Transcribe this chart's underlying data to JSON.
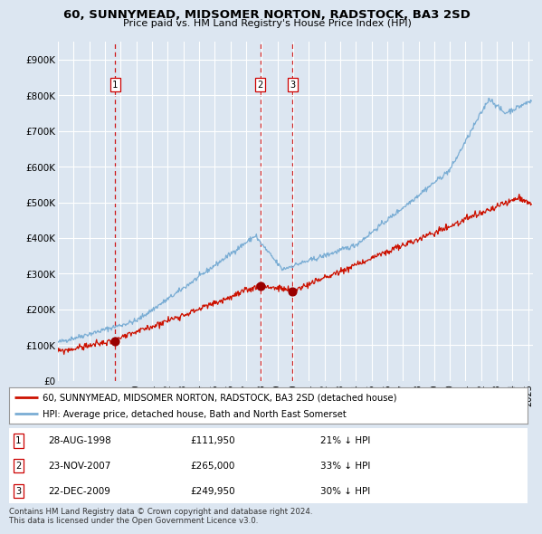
{
  "title": "60, SUNNYMEAD, MIDSOMER NORTON, RADSTOCK, BA3 2SD",
  "subtitle": "Price paid vs. HM Land Registry's House Price Index (HPI)",
  "background_color": "#dce6f1",
  "plot_bg_color": "#dce6f1",
  "red_line_label": "60, SUNNYMEAD, MIDSOMER NORTON, RADSTOCK, BA3 2SD (detached house)",
  "blue_line_label": "HPI: Average price, detached house, Bath and North East Somerset",
  "footer": "Contains HM Land Registry data © Crown copyright and database right 2024.\nThis data is licensed under the Open Government Licence v3.0.",
  "transactions": [
    {
      "num": 1,
      "date": "28-AUG-1998",
      "price": 111950,
      "hpi_note": "21% ↓ HPI",
      "x_year": 1998.65
    },
    {
      "num": 2,
      "date": "23-NOV-2007",
      "price": 265000,
      "hpi_note": "33% ↓ HPI",
      "x_year": 2007.9
    },
    {
      "num": 3,
      "date": "22-DEC-2009",
      "price": 249950,
      "hpi_note": "30% ↓ HPI",
      "x_year": 2009.97
    }
  ],
  "vline_color": "#cc0000",
  "dot_color": "#990000",
  "ylim": [
    0,
    950000
  ],
  "xlim": [
    1995.0,
    2025.3
  ],
  "yticks": [
    0,
    100000,
    200000,
    300000,
    400000,
    500000,
    600000,
    700000,
    800000,
    900000
  ],
  "ytick_labels": [
    "£0",
    "£100K",
    "£200K",
    "£300K",
    "£400K",
    "£500K",
    "£600K",
    "£700K",
    "£800K",
    "£900K"
  ],
  "xtick_years": [
    1995,
    1996,
    1997,
    1998,
    1999,
    2000,
    2001,
    2002,
    2003,
    2004,
    2005,
    2006,
    2007,
    2008,
    2009,
    2010,
    2011,
    2012,
    2013,
    2014,
    2015,
    2016,
    2017,
    2018,
    2019,
    2020,
    2021,
    2022,
    2023,
    2024,
    2025
  ]
}
